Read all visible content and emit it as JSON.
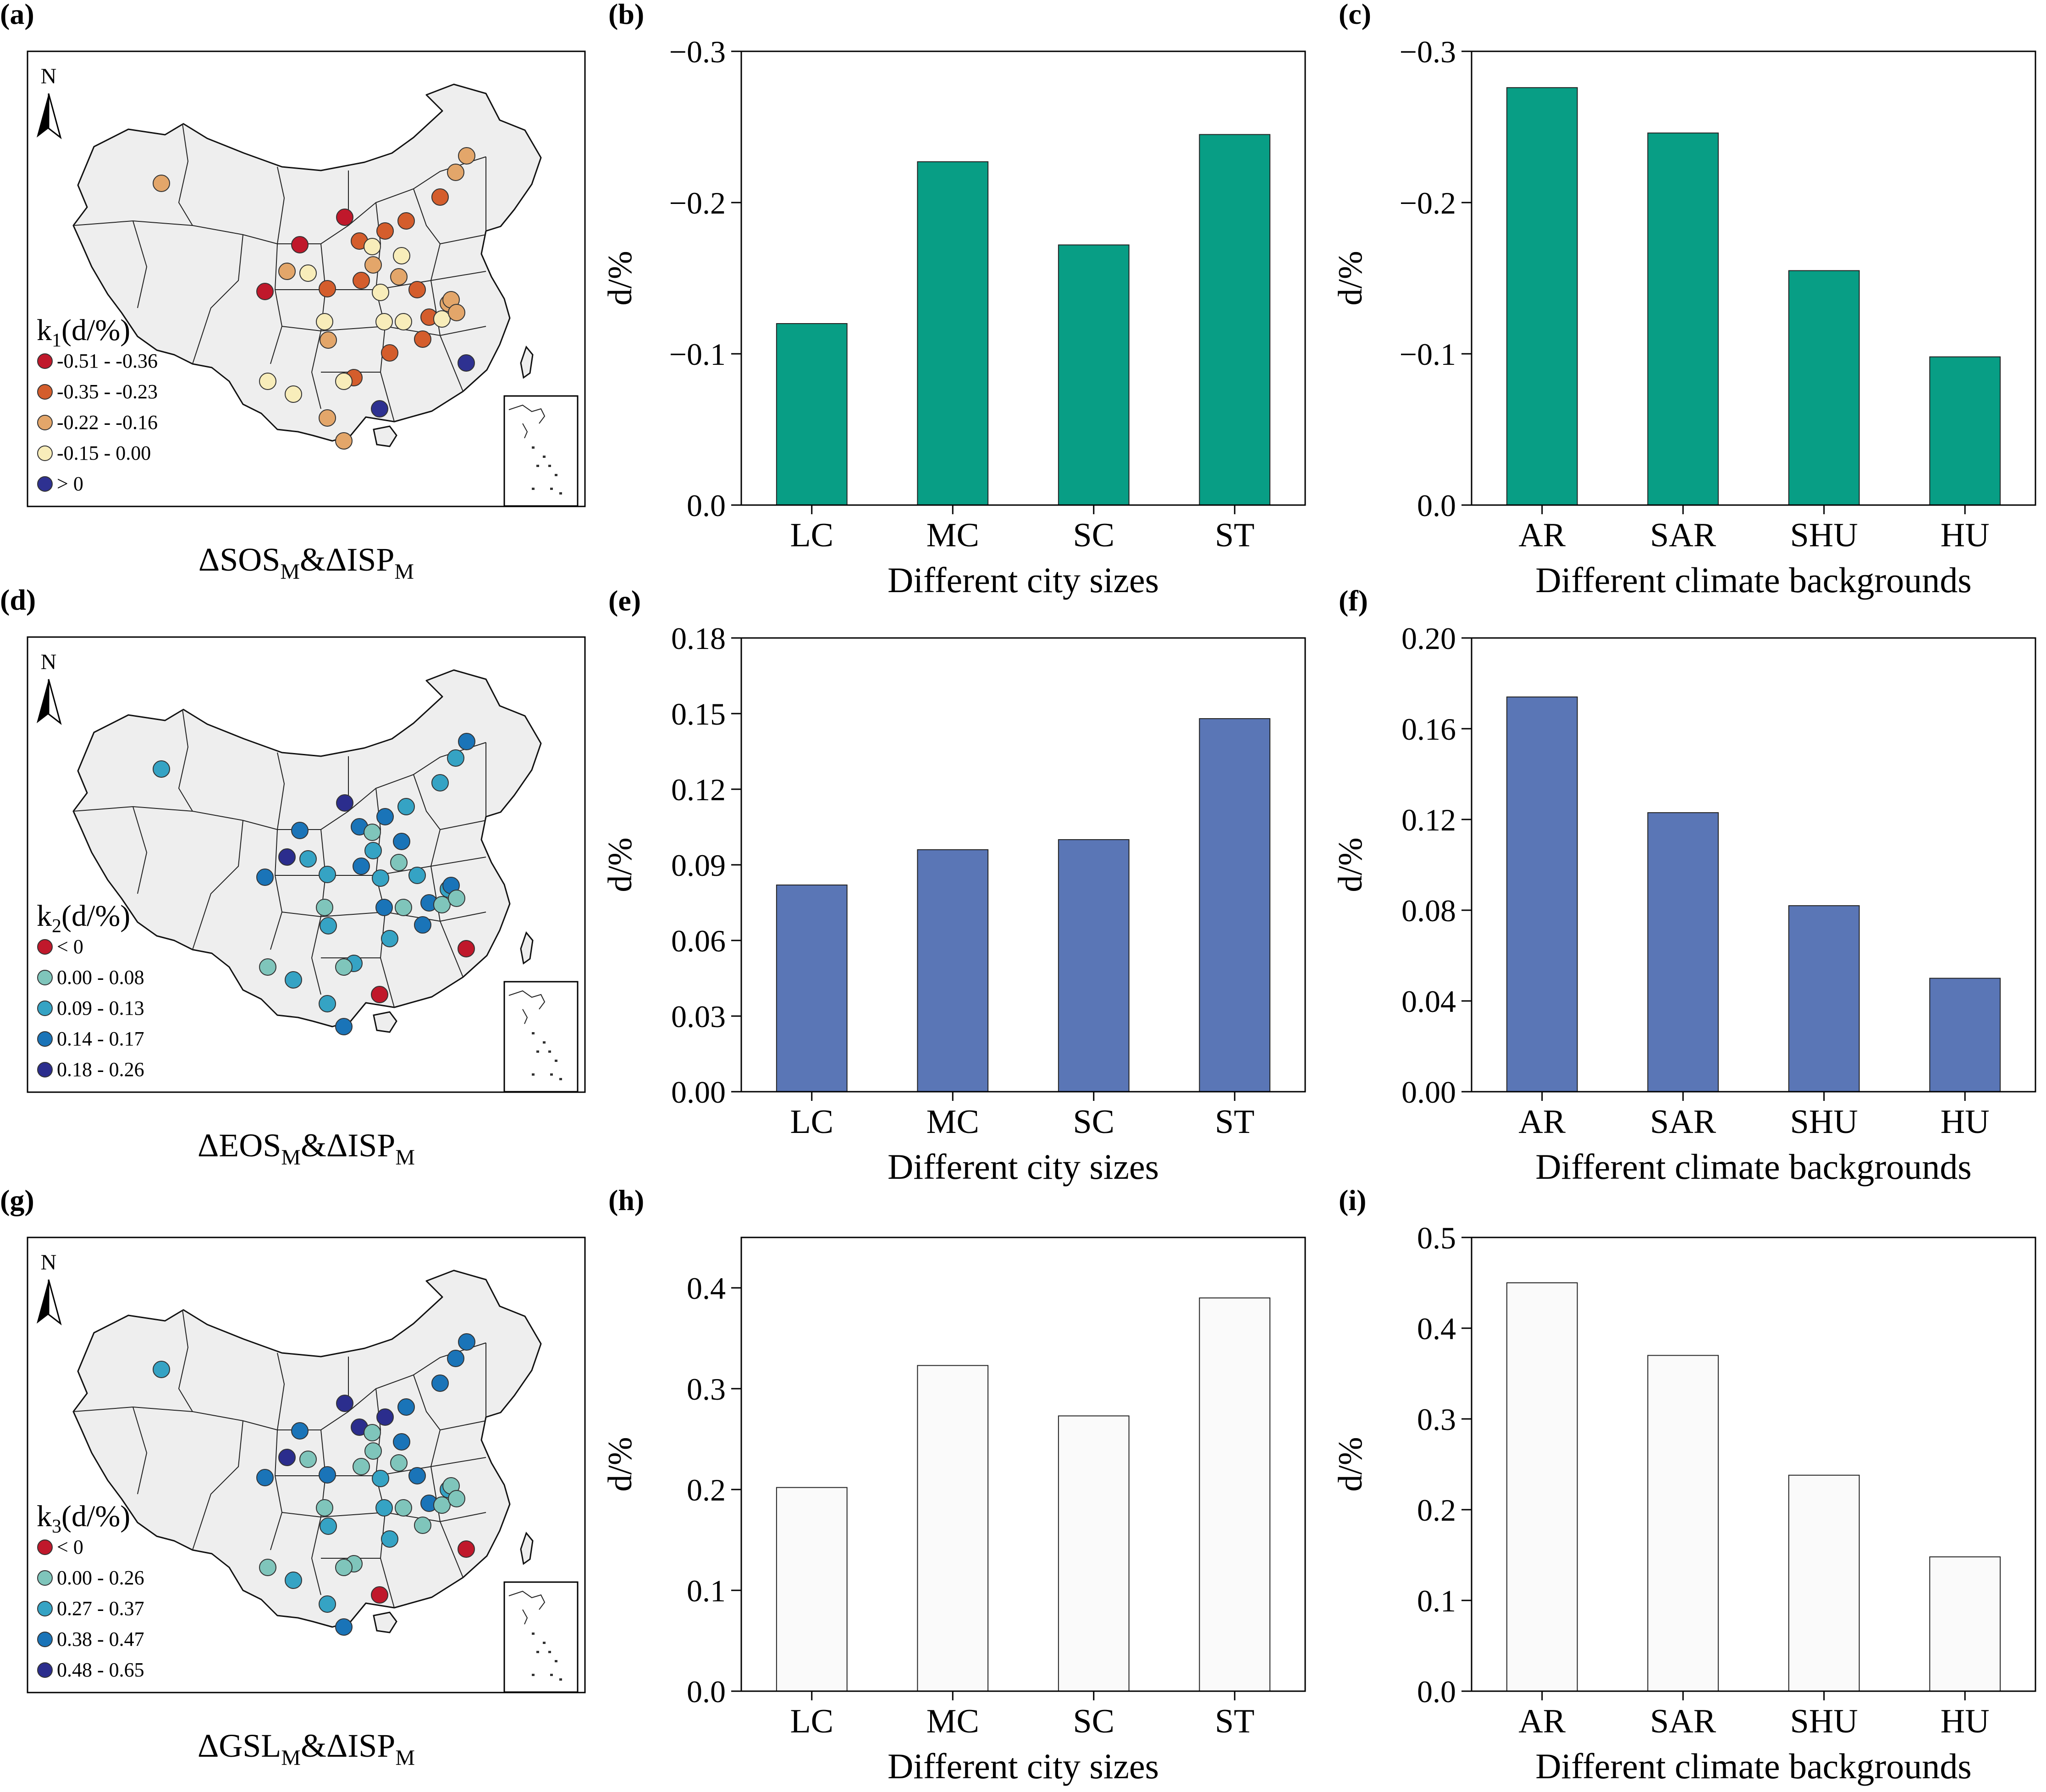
{
  "colors": {
    "dark_red": "#c0182b",
    "orange": "#d45d2c",
    "light_orange": "#e3a66a",
    "cream": "#f8edba",
    "navy": "#2e3191",
    "teal_light": "#7fc5bb",
    "teal": "#35a3c4",
    "blue": "#1a74b8",
    "dark_blue": "#2b2d8d",
    "green_bar": "#089e85",
    "blue_bar": "#5a76b6",
    "white_bar": "#fafafa"
  },
  "maps": [
    {
      "panel": "(a)",
      "north": "N",
      "title_main": "ΔSOS",
      "title_sub1": "M",
      "title_mid": "&ΔISP",
      "title_sub2": "M",
      "legend_title_pre": "k",
      "legend_title_sub": "1",
      "legend_title_post": "(d/%)",
      "legend": [
        {
          "label": "-0.51 - -0.36",
          "color": "#c0182b"
        },
        {
          "label": "-0.35 - -0.23",
          "color": "#d45d2c"
        },
        {
          "label": "-0.22 - -0.16",
          "color": "#e3a66a"
        },
        {
          "label": "-0.15 -  0.00",
          "color": "#f8edba"
        },
        {
          "label": "> 0",
          "color": "#2e3191"
        }
      ],
      "point_classes": [
        2,
        2,
        2,
        1,
        1,
        1,
        1,
        0,
        0,
        2,
        3,
        0,
        1,
        2,
        3,
        3,
        2,
        1,
        3,
        1,
        3,
        1,
        2,
        3,
        3,
        2,
        2,
        1,
        1,
        2,
        1,
        3,
        4,
        3,
        3,
        4,
        3
      ]
    },
    {
      "panel": "(d)",
      "north": "N",
      "title_main": "ΔEOS",
      "title_sub1": "M",
      "title_mid": "&ΔISP",
      "title_sub2": "M",
      "legend_title_pre": "k",
      "legend_title_sub": "2",
      "legend_title_post": "(d/%)",
      "legend": [
        {
          "label": "< 0",
          "color": "#c0182b"
        },
        {
          "label": "0.00 - 0.08",
          "color": "#7fc5bb"
        },
        {
          "label": "0.09 - 0.13",
          "color": "#35a3c4"
        },
        {
          "label": "0.14 - 0.17",
          "color": "#1a74b8"
        },
        {
          "label": "0.18 - 0.26",
          "color": "#2b2d8d"
        }
      ],
      "point_classes": [
        2,
        3,
        2,
        2,
        2,
        3,
        3,
        4,
        3,
        4,
        2,
        3,
        2,
        2,
        1,
        3,
        1,
        3,
        2,
        2,
        1,
        3,
        2,
        1,
        3,
        3,
        1,
        2,
        3,
        2,
        2,
        1,
        0,
        1,
        1,
        0,
        2
      ]
    },
    {
      "panel": "(g)",
      "north": "N",
      "title_main": "ΔGSL",
      "title_sub1": "M",
      "title_mid": "&ΔISP",
      "title_sub2": "M",
      "legend_title_pre": "k",
      "legend_title_sub": "3",
      "legend_title_post": "(d/%)",
      "legend": [
        {
          "label": "< 0",
          "color": "#c0182b"
        },
        {
          "label": "0.00 - 0.26",
          "color": "#7fc5bb"
        },
        {
          "label": "0.27 - 0.37",
          "color": "#35a3c4"
        },
        {
          "label": "0.38 - 0.47",
          "color": "#1a74b8"
        },
        {
          "label": "0.48 - 0.65",
          "color": "#2b2d8d"
        }
      ],
      "point_classes": [
        2,
        3,
        3,
        3,
        3,
        4,
        4,
        4,
        3,
        4,
        1,
        3,
        3,
        1,
        1,
        3,
        1,
        1,
        2,
        3,
        1,
        3,
        2,
        1,
        2,
        1,
        1,
        2,
        1,
        2,
        1,
        1,
        0,
        1,
        1,
        0,
        2
      ]
    }
  ],
  "chart_data": [
    {
      "panel": "(b)",
      "type": "bar",
      "inverted": true,
      "categories": [
        "LC",
        "MC",
        "SC",
        "ST"
      ],
      "values": [
        -0.12,
        -0.227,
        -0.172,
        -0.245
      ],
      "ylim": [
        0,
        -0.3
      ],
      "yticks": [
        "0.0",
        "−0.1",
        "−0.2",
        "−0.3"
      ],
      "xlabel": "Different city sizes",
      "ylabel": "d/%",
      "color": "#089e85"
    },
    {
      "panel": "(c)",
      "type": "bar",
      "inverted": true,
      "categories": [
        "AR",
        "SAR",
        "SHU",
        "HU"
      ],
      "values": [
        -0.276,
        -0.246,
        -0.155,
        -0.098
      ],
      "ylim": [
        0,
        -0.3
      ],
      "yticks": [
        "0.0",
        "−0.1",
        "−0.2",
        "−0.3"
      ],
      "xlabel": "Different climate backgrounds",
      "ylabel": "d/%",
      "color": "#089e85"
    },
    {
      "panel": "(e)",
      "type": "bar",
      "categories": [
        "LC",
        "MC",
        "SC",
        "ST"
      ],
      "values": [
        0.082,
        0.096,
        0.1,
        0.148
      ],
      "ylim": [
        0,
        0.18
      ],
      "yticks": [
        "0.00",
        "0.03",
        "0.06",
        "0.09",
        "0.12",
        "0.15",
        "0.18"
      ],
      "xlabel": "Different city sizes",
      "ylabel": "d/%",
      "color": "#5a76b6"
    },
    {
      "panel": "(f)",
      "type": "bar",
      "categories": [
        "AR",
        "SAR",
        "SHU",
        "HU"
      ],
      "values": [
        0.174,
        0.123,
        0.082,
        0.05
      ],
      "ylim": [
        0,
        0.2
      ],
      "yticks": [
        "0.00",
        "0.04",
        "0.08",
        "0.12",
        "0.16",
        "0.20"
      ],
      "xlabel": "Different climate backgrounds",
      "ylabel": "d/%",
      "color": "#5a76b6"
    },
    {
      "panel": "(h)",
      "type": "bar",
      "categories": [
        "LC",
        "MC",
        "SC",
        "ST"
      ],
      "values": [
        0.202,
        0.323,
        0.273,
        0.39
      ],
      "ylim": [
        0,
        0.45
      ],
      "yticks": [
        "0.0",
        "0.1",
        "0.2",
        "0.3",
        "0.4"
      ],
      "xlabel": "Different city sizes",
      "ylabel": "d/%",
      "color": "#fafafa"
    },
    {
      "panel": "(i)",
      "type": "bar",
      "categories": [
        "AR",
        "SAR",
        "SHU",
        "HU"
      ],
      "values": [
        0.45,
        0.37,
        0.238,
        0.148
      ],
      "ylim": [
        0,
        0.5
      ],
      "yticks": [
        "0.0",
        "0.1",
        "0.2",
        "0.3",
        "0.4",
        "0.5"
      ],
      "xlabel": "Different climate backgrounds",
      "ylabel": "d/%",
      "color": "#fafafa"
    }
  ]
}
